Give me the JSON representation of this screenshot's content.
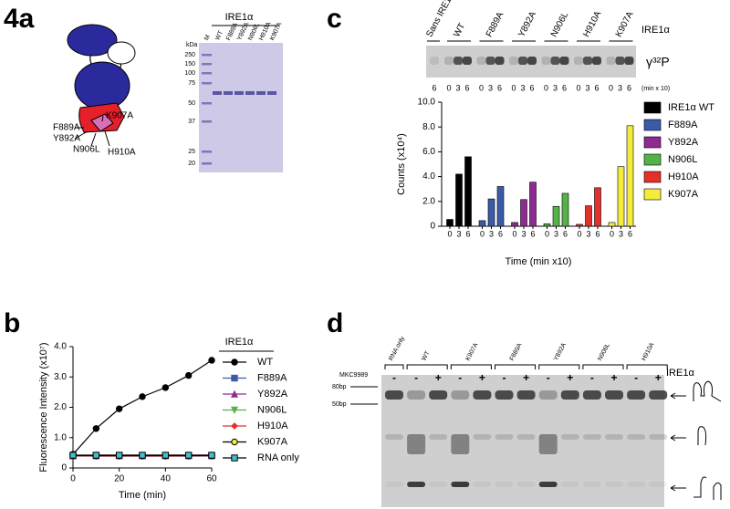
{
  "panel_a": {
    "label": "4a",
    "domain_labels": [
      "K907A",
      "F889A",
      "Y892A",
      "N906L",
      "H910A"
    ],
    "gel": {
      "header": "IRE1α",
      "unit": "kDa",
      "lanes": [
        "M",
        "WT",
        "F889A",
        "Y892A",
        "N906L",
        "H910A",
        "K907A"
      ],
      "markers": [
        250,
        150,
        100,
        75,
        50,
        37,
        25,
        20
      ]
    }
  },
  "panel_b": {
    "label": "b",
    "legend_title": "IRE1α"
  },
  "panel_c": {
    "label": "c",
    "gel": {
      "lanes": [
        "Sans IRE1α",
        "WT",
        "F889A",
        "Y892A",
        "N906L",
        "H910A",
        "K907A"
      ],
      "group_label": "IRE1α",
      "probe": "γ³²P",
      "times": [
        6,
        0,
        3,
        6,
        0,
        3,
        6,
        0,
        3,
        6,
        0,
        3,
        6,
        0,
        3,
        6,
        0,
        3,
        6
      ],
      "time_unit": "(min x 10)"
    }
  },
  "panel_d": {
    "label": "d",
    "group_label": "IRE1α",
    "treatment": "MKC9989",
    "lanes": [
      {
        "text": "RNA only",
        "color": "#000000"
      },
      {
        "text": "WT",
        "color": "#000000"
      },
      {
        "text": "K907A",
        "color": "#000000"
      },
      {
        "text": "F889A",
        "color": "#000000"
      },
      {
        "text": "Y892A",
        "color": "#d0312d"
      },
      {
        "text": "N906L",
        "color": "#d0312d"
      },
      {
        "text": "H910A",
        "color": "#d0312d"
      }
    ],
    "signs": [
      "-",
      "-",
      "+",
      "-",
      "+",
      "-",
      "+",
      "-",
      "+",
      "-",
      "+",
      "-",
      "+"
    ],
    "markers": [
      "80bp",
      "50bp"
    ]
  },
  "chart_data": [
    {
      "type": "line",
      "xlabel": "Time (min)",
      "ylabel": "Fluorescence Intensity (x10⁷)",
      "x": [
        0,
        10,
        20,
        30,
        40,
        50,
        60
      ],
      "xlim": [
        0,
        60
      ],
      "xticks": [
        0,
        20,
        40,
        60
      ],
      "ylim": [
        0,
        4
      ],
      "yticks": [
        0,
        {
          "value": 1,
          "label": "1.0"
        },
        {
          "value": 2,
          "label": "2.0"
        },
        {
          "value": 3,
          "label": "3.0"
        },
        {
          "value": 4,
          "label": "4.0"
        }
      ],
      "series": [
        {
          "name": "WT",
          "color": "#000000",
          "marker": "circle",
          "values": [
            0.45,
            1.3,
            1.95,
            2.35,
            2.65,
            3.05,
            3.55
          ]
        },
        {
          "name": "F889A",
          "color": "#3b5ba9",
          "marker": "square",
          "values": [
            0.4,
            0.4,
            0.4,
            0.4,
            0.4,
            0.4,
            0.4
          ]
        },
        {
          "name": "Y892A",
          "color": "#8e2a91",
          "marker": "triangle",
          "values": [
            0.4,
            0.42,
            0.42,
            0.42,
            0.42,
            0.42,
            0.42
          ]
        },
        {
          "name": "N906L",
          "color": "#55b148",
          "marker": "triangle-down",
          "values": [
            0.4,
            0.4,
            0.4,
            0.4,
            0.4,
            0.4,
            0.4
          ]
        },
        {
          "name": "H910A",
          "color": "#e5302a",
          "marker": "diamond",
          "values": [
            0.4,
            0.39,
            0.39,
            0.39,
            0.39,
            0.39,
            0.4
          ]
        },
        {
          "name": "K907A",
          "color": "#f3ec3a",
          "marker": "circle",
          "edgecolor": "#000000",
          "values": [
            0.4,
            0.4,
            0.4,
            0.4,
            0.4,
            0.4,
            0.4
          ]
        },
        {
          "name": "RNA only",
          "color": "#3fc1c9",
          "marker": "square",
          "edgecolor": "#000000",
          "values": [
            0.42,
            0.42,
            0.42,
            0.42,
            0.42,
            0.42,
            0.42
          ]
        }
      ]
    },
    {
      "type": "bar",
      "xlabel": "Time (min x10)",
      "ylabel": "Counts (x10⁴)",
      "categories": [
        "0",
        "3",
        "6"
      ],
      "ylim": [
        0,
        10
      ],
      "yticks": [
        0,
        {
          "value": 2,
          "label": "2.0"
        },
        {
          "value": 4,
          "label": "4.0"
        },
        {
          "value": 6,
          "label": "6.0"
        },
        {
          "value": 8,
          "label": "8.0"
        },
        {
          "value": 10,
          "label": "10.0"
        }
      ],
      "series": [
        {
          "name": "IRE1α WT",
          "color": "#000000",
          "values": [
            0.55,
            4.2,
            5.6
          ]
        },
        {
          "name": "F889A",
          "color": "#3b5ba9",
          "values": [
            0.45,
            2.2,
            3.2
          ]
        },
        {
          "name": "Y892A",
          "color": "#8e2a91",
          "values": [
            0.3,
            2.15,
            3.55
          ]
        },
        {
          "name": "N906L",
          "color": "#55b148",
          "values": [
            0.2,
            1.6,
            2.65
          ]
        },
        {
          "name": "H910A",
          "color": "#e5302a",
          "values": [
            0.15,
            1.65,
            3.1
          ]
        },
        {
          "name": "K907A",
          "color": "#f3ec3a",
          "values": [
            0.3,
            4.8,
            8.1
          ]
        }
      ]
    }
  ]
}
